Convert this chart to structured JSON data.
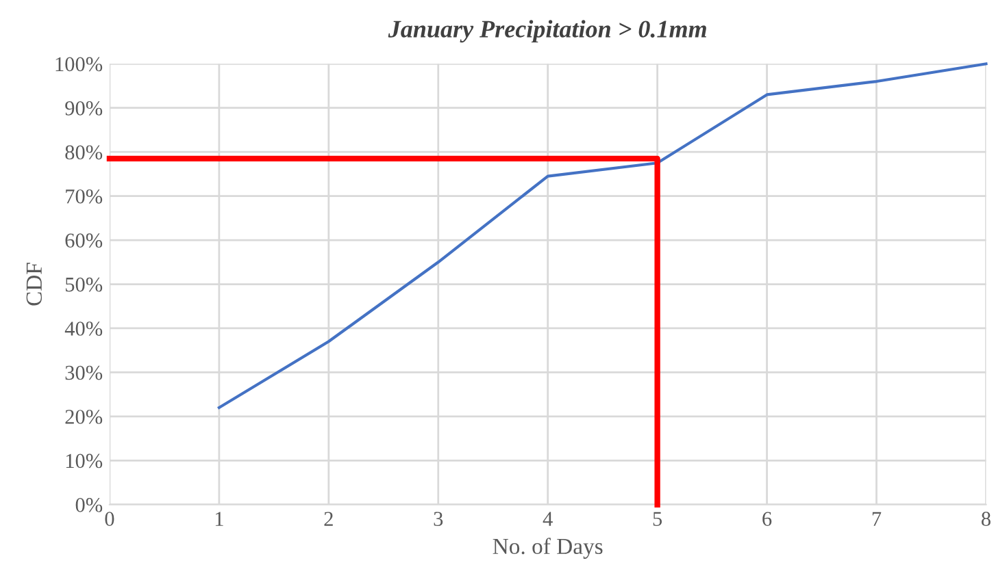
{
  "chart_data": {
    "type": "line",
    "title": "January Precipitation > 0.1mm",
    "xlabel": "No. of Days",
    "ylabel": "CDF",
    "xlim": [
      0,
      8
    ],
    "xticks": [
      0,
      1,
      2,
      3,
      4,
      5,
      6,
      7,
      8
    ],
    "ylim": [
      0,
      100
    ],
    "yticks": [
      {
        "value": 0,
        "label": "0%"
      },
      {
        "value": 10,
        "label": "10%"
      },
      {
        "value": 20,
        "label": "20%"
      },
      {
        "value": 30,
        "label": "30%"
      },
      {
        "value": 40,
        "label": "40%"
      },
      {
        "value": 50,
        "label": "50%"
      },
      {
        "value": 60,
        "label": "60%"
      },
      {
        "value": 70,
        "label": "70%"
      },
      {
        "value": 80,
        "label": "80%"
      },
      {
        "value": 90,
        "label": "90%"
      },
      {
        "value": 100,
        "label": "100%"
      }
    ],
    "grid": true,
    "legend": false,
    "marker": "none",
    "line_style": "solid",
    "series": [
      {
        "color": "#4472c4",
        "x": [
          1,
          2,
          3,
          4,
          5,
          6,
          7,
          8
        ],
        "values": [
          22,
          37,
          55,
          74.5,
          77.5,
          93,
          96,
          100
        ]
      },
      {
        "color": "#ff0000",
        "x": [
          0,
          5,
          5
        ],
        "values": [
          78.5,
          78.5,
          0
        ]
      }
    ]
  }
}
